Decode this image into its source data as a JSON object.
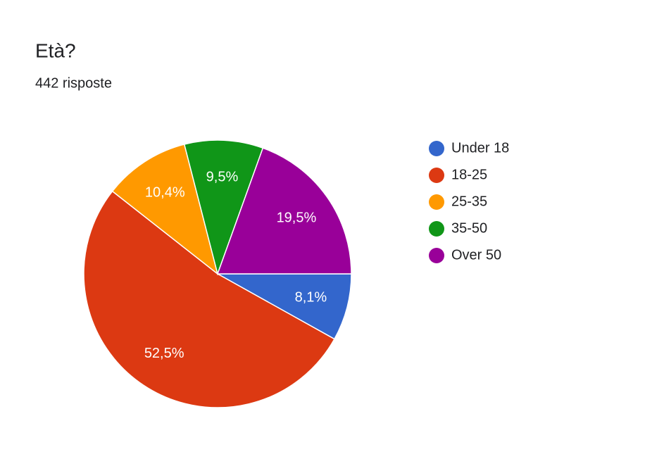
{
  "chart_data": {
    "type": "pie",
    "title": "Età?",
    "subtitle": "442 risposte",
    "categories": [
      "Under 18",
      "18-25",
      "25-35",
      "35-50",
      "Over 50"
    ],
    "values": [
      8.1,
      52.5,
      10.4,
      9.5,
      19.5
    ],
    "value_labels": [
      "8,1%",
      "52,5%",
      "10,4%",
      "9,5%",
      "19,5%"
    ],
    "colors": [
      "#3366cc",
      "#dc3912",
      "#ff9900",
      "#109618",
      "#990099"
    ],
    "legend": "right"
  }
}
